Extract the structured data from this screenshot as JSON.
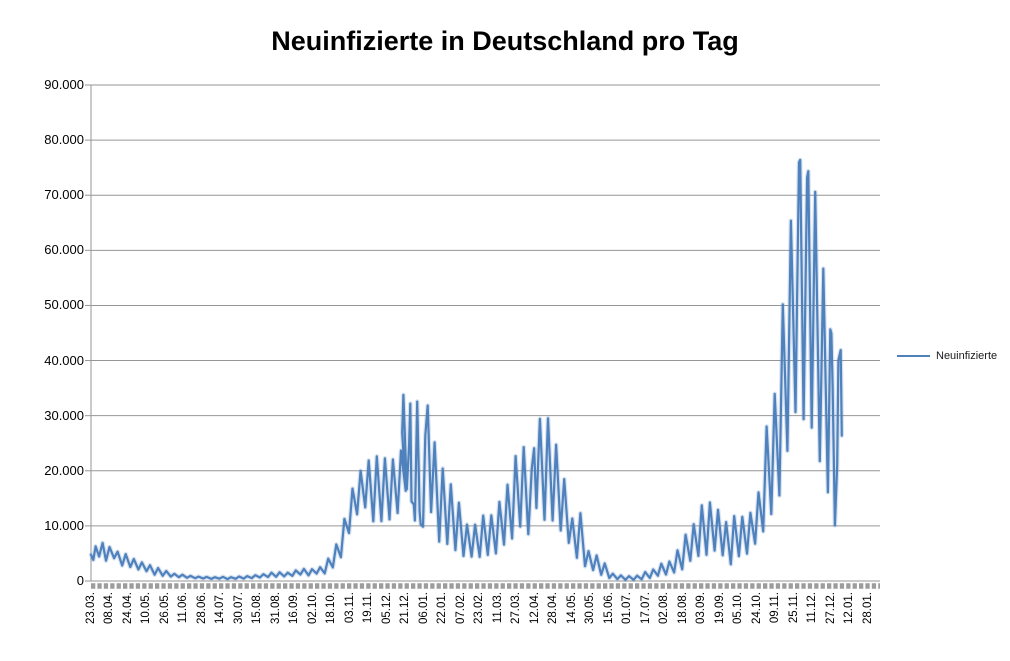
{
  "chart": {
    "title": "Neuinfizierte in Deutschland pro Tag",
    "legend": [
      "Neuinfizierte"
    ]
  },
  "colors": {
    "series": "#4F81BD",
    "gridline": "#969696",
    "axis": "#969696",
    "tick_band": "#9C9C9C",
    "text": "#000000"
  },
  "chart_data": {
    "type": "line",
    "title": "Neuinfizierte in Deutschland pro Tag",
    "xlabel": "",
    "ylabel": "",
    "grid": true,
    "legend_position": "right",
    "legend_entries": [
      "Neuinfizierte"
    ],
    "ylim": [
      0,
      90000
    ],
    "ytick_step": 10000,
    "ytick_labels": [
      "0",
      "10.000",
      "20.000",
      "30.000",
      "40.000",
      "50.000",
      "60.000",
      "70.000",
      "80.000",
      "90.000"
    ],
    "x_tick_labels": [
      "23.03.",
      "08.04.",
      "24.04.",
      "10.05.",
      "26.05.",
      "11.06.",
      "28.06.",
      "14.07.",
      "30.07.",
      "15.08.",
      "31.08.",
      "16.09.",
      "02.10.",
      "18.10.",
      "03.11.",
      "19.11.",
      "05.12.",
      "21.12.",
      "06.01.",
      "22.01.",
      "07.02.",
      "23.02.",
      "11.03.",
      "27.03.",
      "12.04.",
      "28.04.",
      "14.05.",
      "30.05.",
      "15.06.",
      "01.07.",
      "17.07.",
      "02.08.",
      "18.08.",
      "03.09.",
      "19.09.",
      "05.10.",
      "24.10.",
      "09.11.",
      "25.11.",
      "11.12.",
      "27.12.",
      "12.01.",
      "28.01."
    ],
    "x_tick_interval_days": 16,
    "x_axis_total_days": 682,
    "series": [
      {
        "name": "Neuinfizierte",
        "color": "#4F81BD",
        "points_format": "[day_index_from_first_category, daily_new_infections]",
        "points": [
          [
            0,
            4764
          ],
          [
            2,
            3834
          ],
          [
            4,
            6294
          ],
          [
            7,
            4450
          ],
          [
            10,
            6922
          ],
          [
            13,
            3677
          ],
          [
            16,
            6174
          ],
          [
            20,
            4133
          ],
          [
            23,
            5323
          ],
          [
            27,
            2821
          ],
          [
            30,
            4885
          ],
          [
            34,
            2537
          ],
          [
            37,
            3990
          ],
          [
            41,
            2082
          ],
          [
            44,
            3380
          ],
          [
            48,
            1785
          ],
          [
            51,
            2866
          ],
          [
            55,
            1144
          ],
          [
            58,
            2352
          ],
          [
            62,
            947
          ],
          [
            65,
            1813
          ],
          [
            69,
            793
          ],
          [
            72,
            1304
          ],
          [
            76,
            685
          ],
          [
            79,
            1147
          ],
          [
            83,
            583
          ],
          [
            86,
            933
          ],
          [
            90,
            507
          ],
          [
            93,
            798
          ],
          [
            97,
            455
          ],
          [
            100,
            741
          ],
          [
            104,
            378
          ],
          [
            107,
            684
          ],
          [
            111,
            410
          ],
          [
            114,
            770
          ],
          [
            118,
            350
          ],
          [
            121,
            687
          ],
          [
            125,
            407
          ],
          [
            128,
            815
          ],
          [
            132,
            441
          ],
          [
            135,
            896
          ],
          [
            139,
            528
          ],
          [
            142,
            1045
          ],
          [
            146,
            639
          ],
          [
            149,
            1226
          ],
          [
            153,
            714
          ],
          [
            156,
            1510
          ],
          [
            160,
            766
          ],
          [
            163,
            1571
          ],
          [
            167,
            843
          ],
          [
            170,
            1507
          ],
          [
            174,
            921
          ],
          [
            177,
            1916
          ],
          [
            181,
            1176
          ],
          [
            184,
            2194
          ],
          [
            188,
            1011
          ],
          [
            191,
            2143
          ],
          [
            195,
            1345
          ],
          [
            198,
            2503
          ],
          [
            202,
            1382
          ],
          [
            205,
            4058
          ],
          [
            209,
            2467
          ],
          [
            212,
            6638
          ],
          [
            216,
            4325
          ],
          [
            219,
            11287
          ],
          [
            223,
            8685
          ],
          [
            226,
            16774
          ],
          [
            230,
            12097
          ],
          [
            233,
            19990
          ],
          [
            237,
            13363
          ],
          [
            240,
            21866
          ],
          [
            244,
            10824
          ],
          [
            247,
            22609
          ],
          [
            251,
            10864
          ],
          [
            254,
            22268
          ],
          [
            258,
            11169
          ],
          [
            261,
            22046
          ],
          [
            265,
            12332
          ],
          [
            268,
            23679
          ],
          [
            272,
            16362
          ],
          [
            269,
            26923
          ],
          [
            270,
            33777
          ],
          [
            273,
            16643
          ],
          [
            275,
            24740
          ],
          [
            276,
            32195
          ],
          [
            277,
            14455
          ],
          [
            279,
            13882
          ],
          [
            280,
            10976
          ],
          [
            282,
            32552
          ],
          [
            283,
            22924
          ],
          [
            284,
            12690
          ],
          [
            285,
            10315
          ],
          [
            287,
            9847
          ],
          [
            289,
            26391
          ],
          [
            291,
            31849
          ],
          [
            294,
            12497
          ],
          [
            297,
            25164
          ],
          [
            301,
            7141
          ],
          [
            304,
            20398
          ],
          [
            308,
            6729
          ],
          [
            311,
            17553
          ],
          [
            315,
            5608
          ],
          [
            318,
            14211
          ],
          [
            322,
            4535
          ],
          [
            325,
            10237
          ],
          [
            329,
            4426
          ],
          [
            332,
            10207
          ],
          [
            336,
            4369
          ],
          [
            339,
            11869
          ],
          [
            343,
            4732
          ],
          [
            346,
            11912
          ],
          [
            350,
            5011
          ],
          [
            353,
            14356
          ],
          [
            357,
            6604
          ],
          [
            360,
            17482
          ],
          [
            364,
            7709
          ],
          [
            367,
            22657
          ],
          [
            371,
            9872
          ],
          [
            374,
            24300
          ],
          [
            378,
            8497
          ],
          [
            381,
            20407
          ],
          [
            383,
            24097
          ],
          [
            385,
            13245
          ],
          [
            388,
            29426
          ],
          [
            392,
            11101
          ],
          [
            395,
            29518
          ],
          [
            399,
            10976
          ],
          [
            402,
            24736
          ],
          [
            406,
            9160
          ],
          [
            409,
            18485
          ],
          [
            413,
            6922
          ],
          [
            416,
            11336
          ],
          [
            420,
            4209
          ],
          [
            423,
            12298
          ],
          [
            427,
            2682
          ],
          [
            430,
            5426
          ],
          [
            434,
            1978
          ],
          [
            437,
            4640
          ],
          [
            441,
            1117
          ],
          [
            444,
            3187
          ],
          [
            448,
            549
          ],
          [
            451,
            1330
          ],
          [
            455,
            346
          ],
          [
            458,
            1008
          ],
          [
            462,
            219
          ],
          [
            465,
            892
          ],
          [
            469,
            212
          ],
          [
            472,
            970
          ],
          [
            476,
            324
          ],
          [
            479,
            1642
          ],
          [
            483,
            546
          ],
          [
            486,
            2089
          ],
          [
            490,
            958
          ],
          [
            493,
            3142
          ],
          [
            497,
            1183
          ],
          [
            500,
            3539
          ],
          [
            504,
            1545
          ],
          [
            507,
            5578
          ],
          [
            511,
            2126
          ],
          [
            514,
            8400
          ],
          [
            518,
            3668
          ],
          [
            521,
            10303
          ],
          [
            525,
            4559
          ],
          [
            528,
            13715
          ],
          [
            532,
            4749
          ],
          [
            535,
            14251
          ],
          [
            539,
            5511
          ],
          [
            542,
            12925
          ],
          [
            546,
            4664
          ],
          [
            549,
            10696
          ],
          [
            553,
            3022
          ],
          [
            556,
            11780
          ],
          [
            560,
            4500
          ],
          [
            563,
            11644
          ],
          [
            567,
            4971
          ],
          [
            570,
            12382
          ],
          [
            574,
            6771
          ],
          [
            577,
            16077
          ],
          [
            581,
            9000
          ],
          [
            584,
            28037
          ],
          [
            588,
            12135
          ],
          [
            591,
            33949
          ],
          [
            595,
            15513
          ],
          [
            598,
            50196
          ],
          [
            602,
            23607
          ],
          [
            605,
            65371
          ],
          [
            609,
            30643
          ],
          [
            612,
            75961
          ],
          [
            613,
            76414
          ],
          [
            616,
            29364
          ],
          [
            619,
            73209
          ],
          [
            620,
            74352
          ],
          [
            623,
            27836
          ],
          [
            626,
            70611
          ],
          [
            630,
            21743
          ],
          [
            633,
            56677
          ],
          [
            637,
            16086
          ],
          [
            639,
            45659
          ],
          [
            640,
            44927
          ],
          [
            641,
            35431
          ],
          [
            643,
            10100
          ],
          [
            645,
            21080
          ],
          [
            646,
            40043
          ],
          [
            648,
            41889
          ],
          [
            649,
            26392
          ]
        ]
      }
    ]
  }
}
